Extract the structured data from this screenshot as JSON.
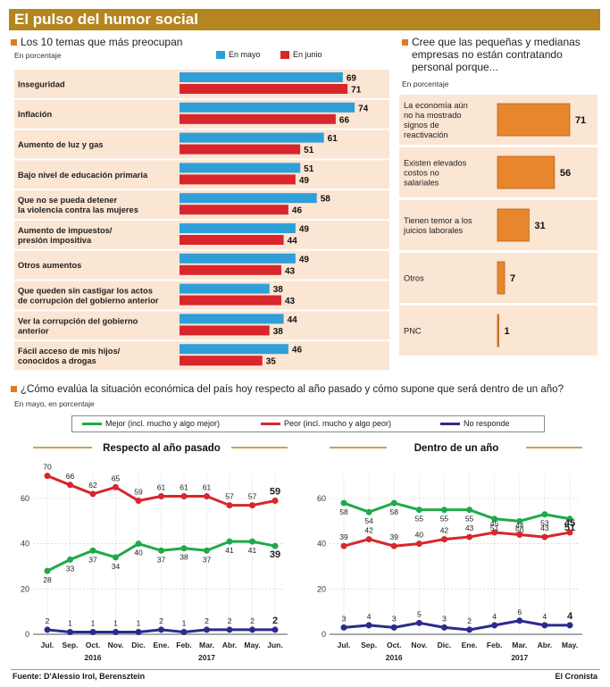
{
  "header": {
    "title": "El pulso del humor social"
  },
  "sec1": {
    "title": "Los 10 temas que más preocupan",
    "subtitle": "En porcentaje",
    "legend": [
      {
        "label": "En mayo",
        "color": "#2f9fd8"
      },
      {
        "label": "En junio",
        "color": "#d8262c"
      }
    ]
  },
  "sec2": {
    "title_lines": [
      "Cree que las pequeñas y medianas",
      "empresas no están contratando",
      "personal porque..."
    ],
    "subtitle": "En porcentaje"
  },
  "sec3": {
    "title": "¿Cómo evalúa la situación económica del país hoy respecto al año pasado y cómo supone que será dentro de un año?",
    "subtitle": "En mayo, en porcentaje",
    "legend": [
      {
        "label": "Mejor (incl. mucho y algo mejor)",
        "color": "#1faa4a"
      },
      {
        "label": "Peor (incl. mucho y algo peor)",
        "color": "#d8262c"
      },
      {
        "label": "No responde",
        "color": "#2b2b8c"
      }
    ]
  },
  "footer": {
    "source": "Fuente: D'Alessio Irol, Berensztein",
    "brand": "El Cronista"
  },
  "chart_data": [
    {
      "type": "bar",
      "title": "Los 10 temas que más preocupan",
      "categories": [
        [
          "Inseguridad"
        ],
        [
          "Inflación"
        ],
        [
          "Aumento de luz y gas"
        ],
        [
          "Bajo nivel de educación primaria"
        ],
        [
          "Que no se pueda detener",
          "la violencia contra las mujeres"
        ],
        [
          "Aumento de impuestos/",
          "presión impositiva"
        ],
        [
          "Otros aumentos"
        ],
        [
          "Que queden sin castigar los actos",
          "de corrupción del gobierno anterior"
        ],
        [
          "Ver la corrupción del gobierno",
          "anterior"
        ],
        [
          "Fácil acceso de mis hijos/",
          "conocidos a drogas"
        ]
      ],
      "series": [
        {
          "name": "En mayo",
          "values": [
            69,
            74,
            61,
            51,
            58,
            49,
            49,
            38,
            44,
            46
          ]
        },
        {
          "name": "En junio",
          "values": [
            71,
            66,
            51,
            49,
            46,
            44,
            43,
            43,
            38,
            35
          ]
        }
      ]
    },
    {
      "type": "bar",
      "title": "Cree que las pequeñas y medianas empresas no están contratando personal porque...",
      "categories": [
        [
          "La economía aún",
          "no ha mostrado",
          "signos de",
          "reactivación"
        ],
        [
          "Existen elevados",
          "costos no",
          "salariales"
        ],
        [
          "Tienen temor a los",
          "juicios laborales"
        ],
        [
          "Otros"
        ],
        [
          "PNC"
        ]
      ],
      "values": [
        71,
        56,
        31,
        7,
        1
      ]
    },
    {
      "type": "line",
      "title": "Respecto al año pasado",
      "x": [
        "Jul.",
        "Sep.",
        "Oct.",
        "Nov.",
        "Dic.",
        "Ene.",
        "Feb.",
        "Mar.",
        "Abr.",
        "May.",
        "Jun."
      ],
      "year_labels": [
        {
          "label": "2016",
          "at": 2
        },
        {
          "label": "2017",
          "at": 7
        }
      ],
      "ylim": [
        0,
        75
      ],
      "yticks": [
        0,
        20,
        40,
        60
      ],
      "series": [
        {
          "name": "Mejor (incl. mucho y algo mejor)",
          "values": [
            28,
            33,
            37,
            34,
            40,
            37,
            38,
            37,
            41,
            41,
            39
          ]
        },
        {
          "name": "Peor (incl. mucho y algo peor)",
          "values": [
            70,
            66,
            62,
            65,
            59,
            61,
            61,
            61,
            57,
            57,
            59
          ]
        },
        {
          "name": "No responde",
          "values": [
            2,
            1,
            1,
            1,
            1,
            2,
            1,
            2,
            2,
            2,
            2
          ]
        }
      ]
    },
    {
      "type": "line",
      "title": "Dentro de un año",
      "x": [
        "Jul.",
        "Sep.",
        "Oct.",
        "Nov.",
        "Dic.",
        "Ene.",
        "Feb.",
        "Mar.",
        "Abr.",
        "May."
      ],
      "year_labels": [
        {
          "label": "2016",
          "at": 2
        },
        {
          "label": "2017",
          "at": 7
        }
      ],
      "ylim": [
        0,
        75
      ],
      "yticks": [
        0,
        20,
        40,
        60
      ],
      "series": [
        {
          "name": "Mejor (incl. mucho y algo mejor)",
          "values": [
            58,
            54,
            58,
            55,
            55,
            55,
            51,
            50,
            53,
            51
          ]
        },
        {
          "name": "Peor (incl. mucho y algo peor)",
          "values": [
            39,
            42,
            39,
            40,
            42,
            43,
            45,
            44,
            43,
            45
          ]
        },
        {
          "name": "No responde",
          "values": [
            3,
            4,
            3,
            5,
            3,
            2,
            4,
            6,
            4,
            4
          ]
        }
      ]
    }
  ]
}
